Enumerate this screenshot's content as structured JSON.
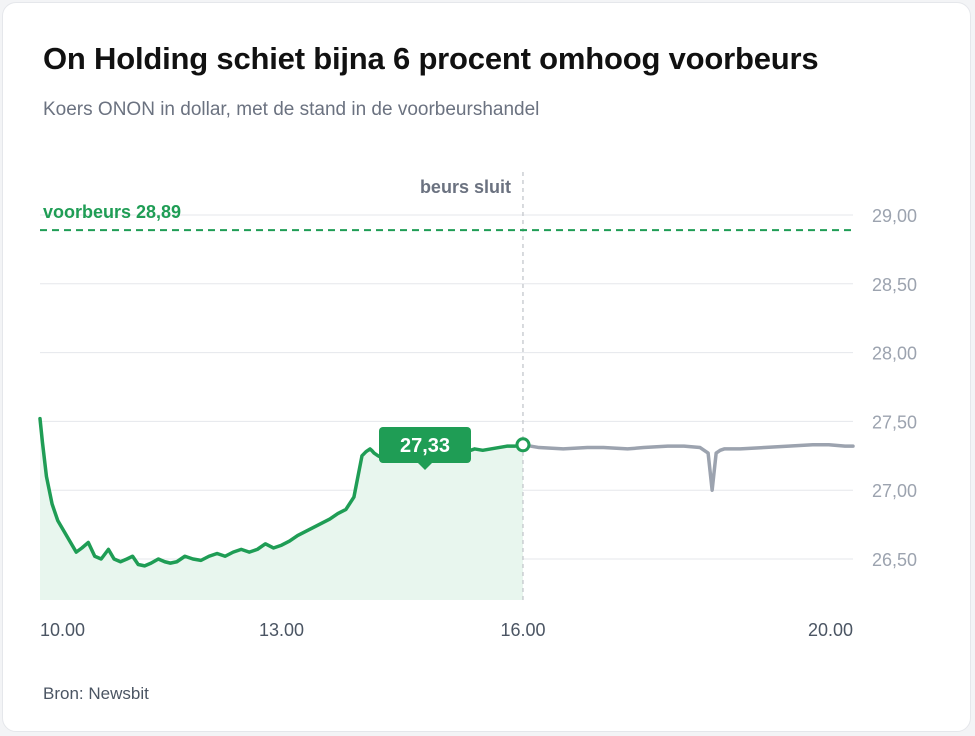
{
  "title": "On Holding schiet bijna 6 procent omhoog voorbeurs",
  "subtitle": "Koers ONON in dollar, met de stand in de voorbeurshandel",
  "source": "Bron: Newsbit",
  "colors": {
    "regular": "#1f9d55",
    "after_hours": "#9ca3af",
    "premarket": "#1f9d55",
    "fill": "#e8f6ee"
  },
  "chart_data": {
    "type": "line",
    "title": "On Holding schiet bijna 6 procent omhoog voorbeurs",
    "subtitle": "Koers ONON in dollar, met de stand in de voorbeurshandel",
    "xlabel": "",
    "ylabel": "",
    "x_ticks": [
      "10.00",
      "13.00",
      "16.00",
      "20.00"
    ],
    "x_tick_hours": [
      10,
      13,
      16,
      20
    ],
    "y_ticks": [
      "26,50",
      "27,00",
      "27,50",
      "28,00",
      "28,50",
      "29,00"
    ],
    "y_tick_values": [
      26.5,
      27.0,
      27.5,
      28.0,
      28.5,
      29.0
    ],
    "xlim": [
      10,
      20.1
    ],
    "ylim": [
      26.2,
      29.1
    ],
    "grid": true,
    "series": [
      {
        "segment": "regular",
        "x": [
          10.0,
          10.03,
          10.08,
          10.15,
          10.22,
          10.3,
          10.38,
          10.45,
          10.52,
          10.6,
          10.68,
          10.76,
          10.85,
          10.92,
          11.0,
          11.08,
          11.15,
          11.22,
          11.3,
          11.38,
          11.47,
          11.55,
          11.62,
          11.7,
          11.8,
          11.9,
          12.0,
          12.1,
          12.2,
          12.3,
          12.4,
          12.5,
          12.6,
          12.7,
          12.8,
          12.9,
          13.0,
          13.1,
          13.2,
          13.3,
          13.4,
          13.5,
          13.6,
          13.7,
          13.8,
          13.9,
          14.0,
          14.05,
          14.1,
          14.12,
          14.15,
          14.2,
          14.3,
          14.4,
          14.5,
          14.6,
          14.7,
          14.8,
          14.9,
          15.0,
          15.1,
          15.2,
          15.3,
          15.4,
          15.5,
          15.6,
          15.7,
          15.8,
          15.9,
          16.0
        ],
        "y": [
          27.52,
          27.35,
          27.1,
          26.9,
          26.78,
          26.7,
          26.62,
          26.55,
          26.58,
          26.62,
          26.52,
          26.5,
          26.57,
          26.5,
          26.48,
          26.5,
          26.52,
          26.46,
          26.45,
          26.47,
          26.5,
          26.48,
          26.47,
          26.48,
          26.52,
          26.5,
          26.49,
          26.52,
          26.54,
          26.52,
          26.55,
          26.57,
          26.55,
          26.57,
          26.61,
          26.58,
          26.6,
          26.63,
          26.67,
          26.7,
          26.73,
          26.76,
          26.79,
          26.83,
          26.86,
          26.95,
          27.25,
          27.28,
          27.3,
          27.29,
          27.27,
          27.25,
          27.22,
          27.24,
          27.26,
          27.22,
          27.24,
          27.26,
          27.25,
          27.23,
          27.26,
          27.27,
          27.28,
          27.3,
          27.29,
          27.3,
          27.31,
          27.32,
          27.32,
          27.33
        ]
      },
      {
        "segment": "after_hours",
        "x": [
          16.0,
          16.2,
          16.5,
          16.8,
          17.0,
          17.3,
          17.5,
          17.8,
          18.0,
          18.2,
          18.3,
          18.35,
          18.4,
          18.45,
          18.5,
          18.7,
          19.0,
          19.3,
          19.6,
          19.8,
          20.0,
          20.1
        ],
        "y": [
          27.33,
          27.31,
          27.3,
          27.31,
          27.31,
          27.3,
          27.31,
          27.32,
          27.32,
          27.31,
          27.27,
          27.0,
          27.27,
          27.29,
          27.3,
          27.3,
          27.31,
          27.32,
          27.33,
          27.33,
          27.32,
          27.32
        ]
      }
    ],
    "premarket": {
      "value": 28.89,
      "label": "voorbeurs 28,89"
    },
    "close_marker": {
      "x": 16.0,
      "label": "beurs sluit"
    },
    "last_value": {
      "x": 16.0,
      "value": 27.33,
      "label": "27,33"
    }
  }
}
